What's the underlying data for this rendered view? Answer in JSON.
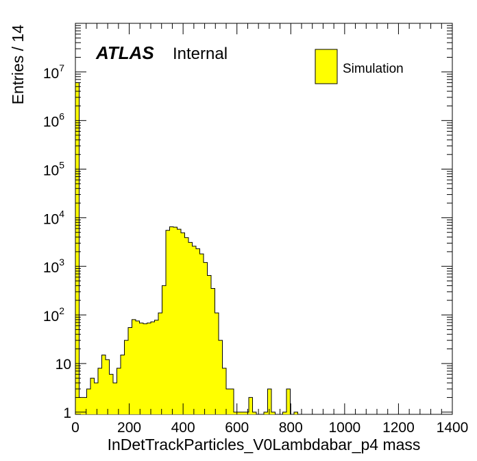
{
  "chart_data": {
    "type": "bar",
    "title": "",
    "xlabel": "InDetTrackParticles_V0Lambdabar_p4 mass",
    "ylabel": "Entries / 14",
    "xlim": [
      0,
      1400
    ],
    "ylim": [
      0.9,
      100000000
    ],
    "log_y": true,
    "grid": false,
    "legend_position": "top-right",
    "fill_color": "#ffff00",
    "line_color": "#000000",
    "x_ticks": [
      "0",
      "200",
      "400",
      "600",
      "800",
      "1000",
      "1200",
      "1400"
    ],
    "y_ticks": [
      {
        "base": "1",
        "exp": "",
        "value": 1
      },
      {
        "base": "10",
        "exp": "",
        "value": 10
      },
      {
        "base": "10",
        "exp": "2",
        "value": 100
      },
      {
        "base": "10",
        "exp": "3",
        "value": 1000
      },
      {
        "base": "10",
        "exp": "4",
        "value": 10000
      },
      {
        "base": "10",
        "exp": "5",
        "value": 100000
      },
      {
        "base": "10",
        "exp": "6",
        "value": 1000000
      },
      {
        "base": "10",
        "exp": "7",
        "value": 10000000
      }
    ],
    "bin_width": 14,
    "series": [
      {
        "name": "Simulation",
        "bin_starts": [
          0,
          14,
          28,
          42,
          56,
          70,
          84,
          98,
          112,
          126,
          140,
          154,
          168,
          182,
          196,
          210,
          224,
          238,
          252,
          266,
          280,
          294,
          308,
          322,
          336,
          350,
          364,
          378,
          392,
          406,
          420,
          434,
          448,
          462,
          476,
          490,
          504,
          518,
          532,
          546,
          560,
          574,
          588,
          602,
          616,
          630,
          644,
          658,
          672,
          686,
          700,
          714,
          728,
          742,
          756,
          770,
          784,
          798,
          812,
          826
        ],
        "values": [
          6000000,
          2,
          2,
          3,
          5,
          4,
          8,
          15,
          12,
          6,
          4,
          8,
          15,
          30,
          55,
          80,
          75,
          68,
          66,
          68,
          72,
          78,
          110,
          400,
          5500,
          6500,
          6400,
          5800,
          4900,
          3900,
          3100,
          2600,
          2300,
          1800,
          1200,
          650,
          350,
          110,
          30,
          8,
          3,
          3,
          1,
          1,
          1,
          1,
          2,
          1,
          0,
          0,
          1,
          3,
          1,
          0,
          0,
          1,
          3,
          0,
          1,
          0
        ]
      }
    ],
    "atlas_label": "ATLAS",
    "atlas_sublabel": "Internal"
  }
}
